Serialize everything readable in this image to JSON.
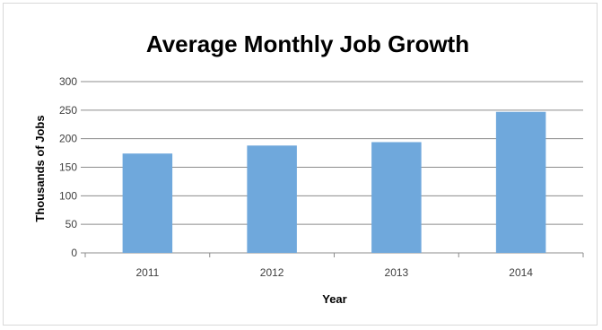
{
  "chart_data": {
    "type": "bar",
    "title": "Average Monthly Job Growth",
    "xlabel": "Year",
    "ylabel": "Thousands of Jobs",
    "categories": [
      "2011",
      "2012",
      "2013",
      "2014"
    ],
    "values": [
      174,
      188,
      194,
      247
    ],
    "ylim": [
      0,
      300
    ],
    "yticks": [
      0,
      50,
      100,
      150,
      200,
      250,
      300
    ],
    "grid": true,
    "legend": "none",
    "bar_color": "#6fa8dc"
  }
}
